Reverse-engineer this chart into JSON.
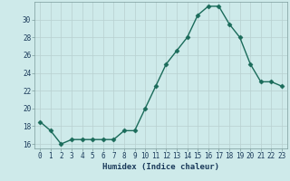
{
  "x": [
    0,
    1,
    2,
    3,
    4,
    5,
    6,
    7,
    8,
    9,
    10,
    11,
    12,
    13,
    14,
    15,
    16,
    17,
    18,
    19,
    20,
    21,
    22,
    23
  ],
  "y": [
    18.5,
    17.5,
    16.0,
    16.5,
    16.5,
    16.5,
    16.5,
    16.5,
    17.5,
    17.5,
    20.0,
    22.5,
    25.0,
    26.5,
    28.0,
    30.5,
    31.5,
    31.5,
    29.5,
    28.0,
    25.0,
    23.0,
    23.0,
    22.5
  ],
  "line_color": "#1a6b5a",
  "marker": "D",
  "markersize": 2.5,
  "linewidth": 1.0,
  "xlabel": "Humidex (Indice chaleur)",
  "ylabel": "",
  "ylim": [
    15.5,
    32
  ],
  "xlim": [
    -0.5,
    23.5
  ],
  "yticks": [
    16,
    18,
    20,
    22,
    24,
    26,
    28,
    30
  ],
  "xtick_labels": [
    "0",
    "1",
    "2",
    "3",
    "4",
    "5",
    "6",
    "7",
    "8",
    "9",
    "10",
    "11",
    "12",
    "13",
    "14",
    "15",
    "16",
    "17",
    "18",
    "19",
    "20",
    "21",
    "22",
    "23"
  ],
  "bg_color": "#ceeaea",
  "grid_color": "#b8d0d0",
  "label_fontsize": 6.5,
  "tick_fontsize": 5.5
}
